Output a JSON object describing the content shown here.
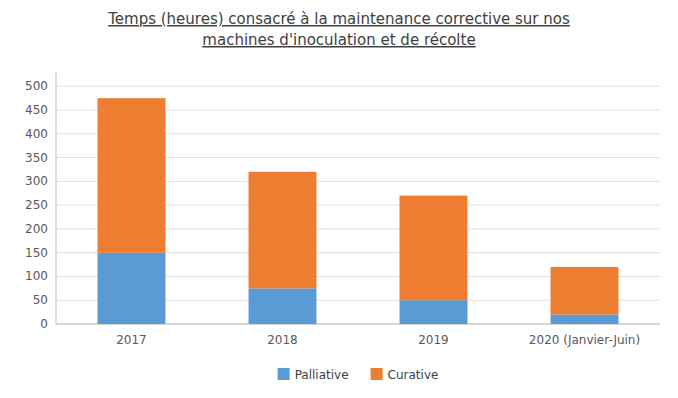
{
  "chart_data": {
    "type": "bar",
    "stacked": true,
    "title": "Temps (heures) consacré à la maintenance corrective sur nos\nmachines d'inoculation et de récolte",
    "categories": [
      "2017",
      "2018",
      "2019",
      "2020 (Janvier-Juin)"
    ],
    "series": [
      {
        "name": "Palliative",
        "color": "#5B9BD5",
        "values": [
          150,
          75,
          50,
          20
        ]
      },
      {
        "name": "Curative",
        "color": "#ED7D31",
        "values": [
          325,
          245,
          220,
          100
        ]
      }
    ],
    "ylim": [
      0,
      530
    ],
    "yticks": [
      0,
      50,
      100,
      150,
      200,
      250,
      300,
      350,
      400,
      450,
      500
    ],
    "grid": true,
    "legend": "bottom"
  }
}
